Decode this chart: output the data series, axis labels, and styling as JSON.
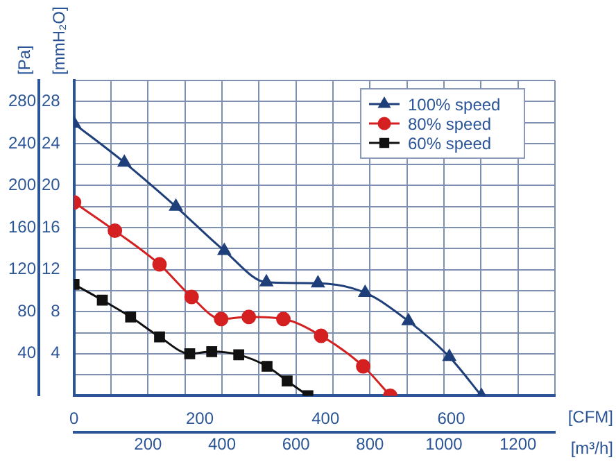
{
  "chart_data": {
    "type": "line",
    "xlabel": "[CFM]",
    "x2label": "[m³/h]",
    "ylabel": "[Pa]",
    "y2label": "[mmH₂O]",
    "xlim": [
      0,
      765
    ],
    "xticks": [
      0,
      200,
      400,
      600
    ],
    "x2lim": [
      0,
      1300
    ],
    "x2ticks": [
      {
        "value": 0,
        "label": null
      },
      {
        "value": 100,
        "label": null
      },
      200,
      {
        "value": 300,
        "label": null
      },
      400,
      {
        "value": 500,
        "label": null
      },
      600,
      {
        "value": 700,
        "label": null
      },
      800,
      {
        "value": 900,
        "label": null
      },
      1000,
      {
        "value": 1100,
        "label": null
      },
      1200,
      {
        "value": 1300,
        "label": null
      }
    ],
    "ylim": [
      0,
      300
    ],
    "yticks": [
      {
        "value": 0,
        "label": null
      },
      {
        "value": 20,
        "label": null
      },
      40,
      {
        "value": 60,
        "label": null
      },
      80,
      {
        "value": 100,
        "label": null
      },
      120,
      {
        "value": 140,
        "label": null
      },
      160,
      {
        "value": 180,
        "label": null
      },
      200,
      {
        "value": 220,
        "label": null
      },
      240,
      {
        "value": 260,
        "label": null
      },
      280,
      {
        "value": 300,
        "label": null
      }
    ],
    "y2lim": [
      0,
      30
    ],
    "y2ticks": [
      4,
      8,
      12,
      16,
      20,
      24,
      28
    ],
    "grid": true,
    "legend": "top right",
    "line_style": "solid",
    "series": [
      {
        "name": "100% speed",
        "color": "#1f3f7a",
        "marker": "triangle",
        "x": [
          0,
          80,
          162,
          239,
          306,
          388,
          463,
          532,
          597,
          648
        ],
        "values": [
          259,
          222,
          180,
          138,
          108,
          107,
          98,
          71,
          37,
          0
        ]
      },
      {
        "name": "80% speed",
        "color": "#d42020",
        "marker": "circle",
        "x": [
          0,
          65,
          136,
          187,
          234,
          278,
          333,
          393,
          460,
          503
        ],
        "values": [
          184,
          157,
          125,
          94,
          73,
          75,
          73,
          57,
          28,
          0
        ]
      },
      {
        "name": "60% speed",
        "color": "#111111",
        "marker": "square",
        "x": [
          0,
          45,
          90,
          136,
          184,
          219,
          262,
          307,
          339,
          372
        ],
        "values": [
          106,
          91,
          75,
          56,
          40,
          42,
          39,
          28,
          14,
          0
        ]
      }
    ]
  }
}
